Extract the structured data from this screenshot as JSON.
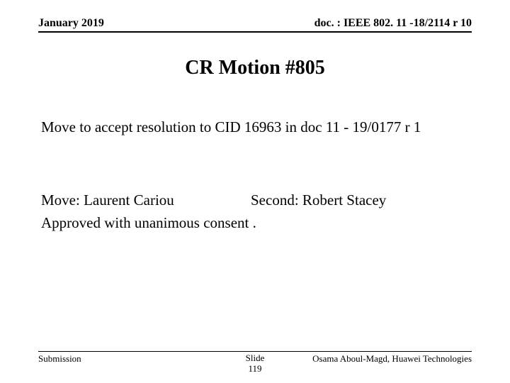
{
  "header": {
    "date": "January 2019",
    "doc_ref": "doc. : IEEE 802. 11 -18/2114 r 10"
  },
  "title": "CR Motion #805",
  "motion": {
    "text": "Move to accept resolution to CID 16963 in doc 11 - 19/0177 r 1"
  },
  "move": {
    "mover_label": "Move: ",
    "mover_name": "Laurent Cariou",
    "second_label": "Second: ",
    "second_name": "Robert Stacey"
  },
  "result": "Approved with unanimous consent .",
  "footer": {
    "left": "Submission",
    "slide_label": "Slide",
    "slide_number": "119",
    "author": "Osama Aboul-Magd, Huawei Technologies"
  },
  "style": {
    "background_color": "#ffffff",
    "text_color": "#000000",
    "rule_color": "#000000",
    "title_fontsize": 28,
    "body_fontsize": 21,
    "header_fontsize": 16,
    "footer_fontsize": 13,
    "font_family": "Times New Roman"
  }
}
